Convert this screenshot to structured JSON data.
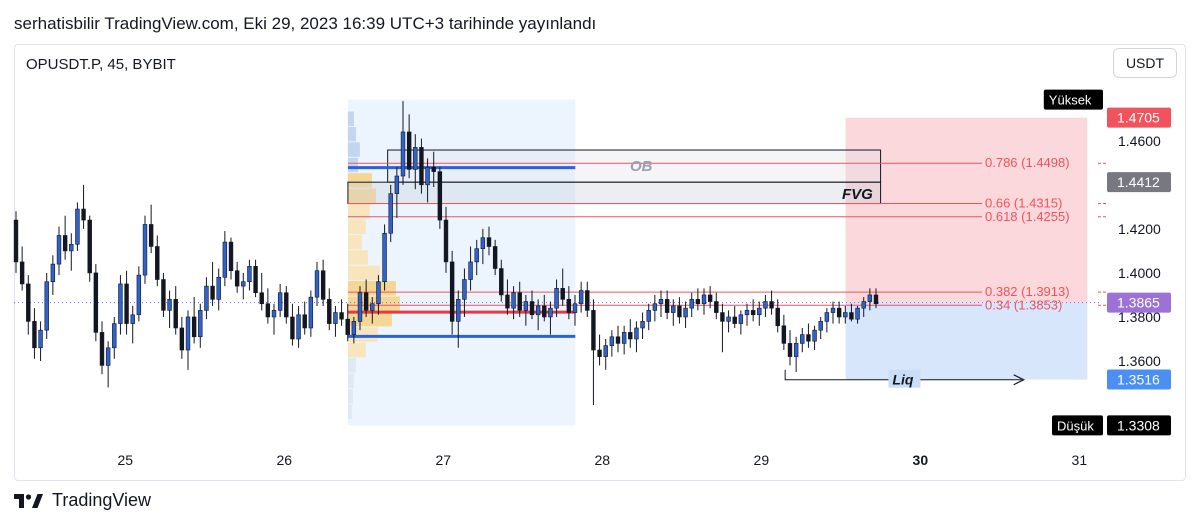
{
  "header": {
    "publish_text": "serhatisbilir TradingView.com, Eki 29, 2023 16:39 UTC+3 tarihinde yayınlandı"
  },
  "symbol": {
    "label": "OPUSDT.P, 45, BYBIT"
  },
  "currency_button": {
    "label": "USDT"
  },
  "footer": {
    "brand": "TradingView",
    "logo_icon": "tradingview-logo-icon"
  },
  "chart_data": {
    "type": "candlestick",
    "symbol": "OPUSDT.P",
    "timeframe": "45",
    "exchange": "BYBIT",
    "x_ticks": [
      "25",
      "26",
      "27",
      "28",
      "29",
      "30",
      "31"
    ],
    "x_tick_bold": "30",
    "y_ticks": [
      "1.4600",
      "1.4200",
      "1.4000",
      "1.3800",
      "1.3600"
    ],
    "ylim": [
      1.3255,
      1.4885
    ],
    "xlim_days": [
      24.3,
      31.13
    ],
    "price_labels": [
      {
        "text": "Yüksek",
        "value": 1.4787,
        "color": "#000000",
        "kind": "tag"
      },
      {
        "text": "1.4705",
        "value": 1.4705,
        "color": "#f0535d",
        "kind": "price"
      },
      {
        "text": "1.4412",
        "value": 1.4412,
        "color": "#777880",
        "kind": "price"
      },
      {
        "text": "1.3865",
        "value": 1.3865,
        "color": "#9c72d6",
        "kind": "price"
      },
      {
        "text": "1.3516",
        "value": 1.3516,
        "color": "#4c8ff3",
        "kind": "price"
      },
      {
        "text": "Düşük",
        "value": 1.3308,
        "color": "#000000",
        "kind": "tag"
      },
      {
        "text": "1.3308",
        "value": 1.3308,
        "color": "#000000",
        "kind": "price"
      }
    ],
    "fib_levels": [
      {
        "label": "0.786 (1.4498)",
        "value": 1.4498
      },
      {
        "label": "0.66 (1.4315)",
        "value": 1.4315
      },
      {
        "label": "0.618 (1.4255)",
        "value": 1.4255
      },
      {
        "label": "0.382 (1.3913)",
        "value": 1.3913
      },
      {
        "label": "0.34 (1.3853)",
        "value": 1.3853
      }
    ],
    "fib_x_start": 26.4,
    "fib_x_end": 31.0,
    "annotations": {
      "ob_label": "OB",
      "fvg_label": "FVG",
      "liq_label": "Liq"
    },
    "ob_box": {
      "x0": 26.65,
      "x1": 29.75,
      "y0": 1.4558,
      "y1": 1.4412
    },
    "fvg_box": {
      "x0": 26.4,
      "x1": 29.75,
      "y0": 1.4412,
      "y1": 1.4315
    },
    "ob_line": {
      "x0": 26.4,
      "x1": 27.83,
      "value": 1.4478
    },
    "vp_red_line": {
      "x0": 26.4,
      "x1": 27.83,
      "value": 1.3822
    },
    "vp_blue_line": {
      "x0": 26.4,
      "x1": 27.83,
      "value": 1.3712
    },
    "volume_profile_range": {
      "x0": 26.4,
      "x1": 27.83,
      "y0": 1.3308,
      "y1": 1.4787
    },
    "risk_zone": {
      "x0": 29.53,
      "x1": 31.05,
      "y0": 1.4705,
      "y1": 1.3865
    },
    "reward_zone": {
      "x0": 29.53,
      "x1": 31.05,
      "y0": 1.3865,
      "y1": 1.3516
    },
    "liq_arrow": {
      "x0": 29.15,
      "x1": 30.65,
      "value": 1.3515
    },
    "current_price": 1.3865,
    "candles": [
      {
        "o": 1.424,
        "h": 1.428,
        "l": 1.4,
        "c": 1.405
      },
      {
        "o": 1.405,
        "h": 1.412,
        "l": 1.392,
        "c": 1.395
      },
      {
        "o": 1.395,
        "h": 1.399,
        "l": 1.372,
        "c": 1.378
      },
      {
        "o": 1.378,
        "h": 1.384,
        "l": 1.361,
        "c": 1.366
      },
      {
        "o": 1.366,
        "h": 1.378,
        "l": 1.36,
        "c": 1.374
      },
      {
        "o": 1.374,
        "h": 1.4,
        "l": 1.37,
        "c": 1.396
      },
      {
        "o": 1.396,
        "h": 1.408,
        "l": 1.39,
        "c": 1.404
      },
      {
        "o": 1.404,
        "h": 1.421,
        "l": 1.399,
        "c": 1.417
      },
      {
        "o": 1.417,
        "h": 1.426,
        "l": 1.406,
        "c": 1.41
      },
      {
        "o": 1.41,
        "h": 1.418,
        "l": 1.401,
        "c": 1.413
      },
      {
        "o": 1.413,
        "h": 1.432,
        "l": 1.41,
        "c": 1.429
      },
      {
        "o": 1.429,
        "h": 1.44,
        "l": 1.42,
        "c": 1.424
      },
      {
        "o": 1.424,
        "h": 1.426,
        "l": 1.396,
        "c": 1.4
      },
      {
        "o": 1.4,
        "h": 1.404,
        "l": 1.369,
        "c": 1.373
      },
      {
        "o": 1.373,
        "h": 1.378,
        "l": 1.354,
        "c": 1.358
      },
      {
        "o": 1.358,
        "h": 1.369,
        "l": 1.348,
        "c": 1.366
      },
      {
        "o": 1.366,
        "h": 1.38,
        "l": 1.361,
        "c": 1.377
      },
      {
        "o": 1.377,
        "h": 1.399,
        "l": 1.372,
        "c": 1.395
      },
      {
        "o": 1.395,
        "h": 1.401,
        "l": 1.372,
        "c": 1.377
      },
      {
        "o": 1.377,
        "h": 1.385,
        "l": 1.368,
        "c": 1.381
      },
      {
        "o": 1.381,
        "h": 1.403,
        "l": 1.378,
        "c": 1.399
      },
      {
        "o": 1.399,
        "h": 1.426,
        "l": 1.395,
        "c": 1.422
      },
      {
        "o": 1.422,
        "h": 1.431,
        "l": 1.409,
        "c": 1.412
      },
      {
        "o": 1.412,
        "h": 1.417,
        "l": 1.394,
        "c": 1.397
      },
      {
        "o": 1.397,
        "h": 1.4,
        "l": 1.38,
        "c": 1.383
      },
      {
        "o": 1.383,
        "h": 1.392,
        "l": 1.375,
        "c": 1.388
      },
      {
        "o": 1.388,
        "h": 1.394,
        "l": 1.372,
        "c": 1.375
      },
      {
        "o": 1.375,
        "h": 1.38,
        "l": 1.361,
        "c": 1.365
      },
      {
        "o": 1.365,
        "h": 1.383,
        "l": 1.356,
        "c": 1.38
      },
      {
        "o": 1.38,
        "h": 1.389,
        "l": 1.368,
        "c": 1.371
      },
      {
        "o": 1.371,
        "h": 1.386,
        "l": 1.366,
        "c": 1.383
      },
      {
        "o": 1.383,
        "h": 1.398,
        "l": 1.379,
        "c": 1.394
      },
      {
        "o": 1.394,
        "h": 1.405,
        "l": 1.385,
        "c": 1.388
      },
      {
        "o": 1.388,
        "h": 1.402,
        "l": 1.383,
        "c": 1.398
      },
      {
        "o": 1.398,
        "h": 1.419,
        "l": 1.394,
        "c": 1.414
      },
      {
        "o": 1.414,
        "h": 1.416,
        "l": 1.397,
        "c": 1.401
      },
      {
        "o": 1.401,
        "h": 1.405,
        "l": 1.391,
        "c": 1.394
      },
      {
        "o": 1.394,
        "h": 1.4,
        "l": 1.388,
        "c": 1.396
      },
      {
        "o": 1.396,
        "h": 1.406,
        "l": 1.392,
        "c": 1.403
      },
      {
        "o": 1.403,
        "h": 1.406,
        "l": 1.389,
        "c": 1.391
      },
      {
        "o": 1.391,
        "h": 1.4,
        "l": 1.383,
        "c": 1.386
      },
      {
        "o": 1.386,
        "h": 1.393,
        "l": 1.377,
        "c": 1.38
      },
      {
        "o": 1.38,
        "h": 1.386,
        "l": 1.372,
        "c": 1.383
      },
      {
        "o": 1.383,
        "h": 1.395,
        "l": 1.38,
        "c": 1.391
      },
      {
        "o": 1.391,
        "h": 1.394,
        "l": 1.377,
        "c": 1.38
      },
      {
        "o": 1.38,
        "h": 1.386,
        "l": 1.367,
        "c": 1.37
      },
      {
        "o": 1.37,
        "h": 1.385,
        "l": 1.366,
        "c": 1.381
      },
      {
        "o": 1.381,
        "h": 1.387,
        "l": 1.372,
        "c": 1.375
      },
      {
        "o": 1.375,
        "h": 1.392,
        "l": 1.371,
        "c": 1.389
      },
      {
        "o": 1.389,
        "h": 1.405,
        "l": 1.385,
        "c": 1.401
      },
      {
        "o": 1.401,
        "h": 1.406,
        "l": 1.385,
        "c": 1.388
      },
      {
        "o": 1.388,
        "h": 1.393,
        "l": 1.374,
        "c": 1.377
      },
      {
        "o": 1.377,
        "h": 1.385,
        "l": 1.371,
        "c": 1.382
      },
      {
        "o": 1.382,
        "h": 1.388,
        "l": 1.376,
        "c": 1.379
      },
      {
        "o": 1.379,
        "h": 1.386,
        "l": 1.369,
        "c": 1.372
      },
      {
        "o": 1.372,
        "h": 1.38,
        "l": 1.368,
        "c": 1.378
      },
      {
        "o": 1.378,
        "h": 1.394,
        "l": 1.374,
        "c": 1.391
      },
      {
        "o": 1.391,
        "h": 1.397,
        "l": 1.38,
        "c": 1.383
      },
      {
        "o": 1.383,
        "h": 1.389,
        "l": 1.377,
        "c": 1.386
      },
      {
        "o": 1.386,
        "h": 1.399,
        "l": 1.381,
        "c": 1.396
      },
      {
        "o": 1.396,
        "h": 1.422,
        "l": 1.392,
        "c": 1.418
      },
      {
        "o": 1.418,
        "h": 1.44,
        "l": 1.414,
        "c": 1.436
      },
      {
        "o": 1.436,
        "h": 1.448,
        "l": 1.425,
        "c": 1.444
      },
      {
        "o": 1.444,
        "h": 1.478,
        "l": 1.44,
        "c": 1.464
      },
      {
        "o": 1.464,
        "h": 1.472,
        "l": 1.443,
        "c": 1.447
      },
      {
        "o": 1.447,
        "h": 1.463,
        "l": 1.438,
        "c": 1.457
      },
      {
        "o": 1.457,
        "h": 1.461,
        "l": 1.436,
        "c": 1.44
      },
      {
        "o": 1.44,
        "h": 1.452,
        "l": 1.432,
        "c": 1.448
      },
      {
        "o": 1.448,
        "h": 1.455,
        "l": 1.439,
        "c": 1.446
      },
      {
        "o": 1.446,
        "h": 1.448,
        "l": 1.42,
        "c": 1.424
      },
      {
        "o": 1.424,
        "h": 1.43,
        "l": 1.4,
        "c": 1.405
      },
      {
        "o": 1.405,
        "h": 1.41,
        "l": 1.372,
        "c": 1.378
      },
      {
        "o": 1.378,
        "h": 1.392,
        "l": 1.366,
        "c": 1.388
      },
      {
        "o": 1.388,
        "h": 1.402,
        "l": 1.38,
        "c": 1.397
      },
      {
        "o": 1.397,
        "h": 1.412,
        "l": 1.392,
        "c": 1.405
      },
      {
        "o": 1.405,
        "h": 1.415,
        "l": 1.399,
        "c": 1.411
      },
      {
        "o": 1.411,
        "h": 1.42,
        "l": 1.404,
        "c": 1.416
      },
      {
        "o": 1.416,
        "h": 1.421,
        "l": 1.408,
        "c": 1.412
      },
      {
        "o": 1.412,
        "h": 1.415,
        "l": 1.399,
        "c": 1.402
      },
      {
        "o": 1.402,
        "h": 1.406,
        "l": 1.387,
        "c": 1.39
      },
      {
        "o": 1.39,
        "h": 1.397,
        "l": 1.381,
        "c": 1.384
      },
      {
        "o": 1.384,
        "h": 1.394,
        "l": 1.379,
        "c": 1.391
      },
      {
        "o": 1.391,
        "h": 1.396,
        "l": 1.38,
        "c": 1.383
      },
      {
        "o": 1.383,
        "h": 1.39,
        "l": 1.376,
        "c": 1.387
      },
      {
        "o": 1.387,
        "h": 1.392,
        "l": 1.379,
        "c": 1.381
      },
      {
        "o": 1.381,
        "h": 1.388,
        "l": 1.374,
        "c": 1.385
      },
      {
        "o": 1.385,
        "h": 1.39,
        "l": 1.378,
        "c": 1.38
      },
      {
        "o": 1.38,
        "h": 1.387,
        "l": 1.372,
        "c": 1.384
      },
      {
        "o": 1.384,
        "h": 1.397,
        "l": 1.38,
        "c": 1.393
      },
      {
        "o": 1.393,
        "h": 1.402,
        "l": 1.385,
        "c": 1.388
      },
      {
        "o": 1.388,
        "h": 1.394,
        "l": 1.379,
        "c": 1.382
      },
      {
        "o": 1.382,
        "h": 1.39,
        "l": 1.376,
        "c": 1.386
      },
      {
        "o": 1.386,
        "h": 1.396,
        "l": 1.382,
        "c": 1.392
      },
      {
        "o": 1.392,
        "h": 1.396,
        "l": 1.38,
        "c": 1.383
      },
      {
        "o": 1.383,
        "h": 1.388,
        "l": 1.34,
        "c": 1.365
      },
      {
        "o": 1.365,
        "h": 1.372,
        "l": 1.358,
        "c": 1.362
      },
      {
        "o": 1.362,
        "h": 1.37,
        "l": 1.356,
        "c": 1.367
      },
      {
        "o": 1.367,
        "h": 1.374,
        "l": 1.362,
        "c": 1.371
      },
      {
        "o": 1.371,
        "h": 1.376,
        "l": 1.364,
        "c": 1.368
      },
      {
        "o": 1.368,
        "h": 1.376,
        "l": 1.363,
        "c": 1.373
      },
      {
        "o": 1.373,
        "h": 1.379,
        "l": 1.366,
        "c": 1.37
      },
      {
        "o": 1.37,
        "h": 1.378,
        "l": 1.364,
        "c": 1.375
      },
      {
        "o": 1.375,
        "h": 1.382,
        "l": 1.37,
        "c": 1.378
      },
      {
        "o": 1.378,
        "h": 1.386,
        "l": 1.374,
        "c": 1.383
      },
      {
        "o": 1.383,
        "h": 1.39,
        "l": 1.378,
        "c": 1.386
      },
      {
        "o": 1.386,
        "h": 1.392,
        "l": 1.38,
        "c": 1.388
      },
      {
        "o": 1.388,
        "h": 1.392,
        "l": 1.379,
        "c": 1.382
      },
      {
        "o": 1.382,
        "h": 1.388,
        "l": 1.376,
        "c": 1.385
      },
      {
        "o": 1.385,
        "h": 1.389,
        "l": 1.377,
        "c": 1.38
      },
      {
        "o": 1.38,
        "h": 1.387,
        "l": 1.375,
        "c": 1.384
      },
      {
        "o": 1.384,
        "h": 1.391,
        "l": 1.38,
        "c": 1.388
      },
      {
        "o": 1.388,
        "h": 1.393,
        "l": 1.383,
        "c": 1.386
      },
      {
        "o": 1.386,
        "h": 1.393,
        "l": 1.381,
        "c": 1.39
      },
      {
        "o": 1.39,
        "h": 1.394,
        "l": 1.384,
        "c": 1.387
      },
      {
        "o": 1.387,
        "h": 1.391,
        "l": 1.379,
        "c": 1.382
      },
      {
        "o": 1.382,
        "h": 1.386,
        "l": 1.364,
        "c": 1.378
      },
      {
        "o": 1.378,
        "h": 1.383,
        "l": 1.373,
        "c": 1.38
      },
      {
        "o": 1.38,
        "h": 1.385,
        "l": 1.375,
        "c": 1.377
      },
      {
        "o": 1.377,
        "h": 1.383,
        "l": 1.372,
        "c": 1.381
      },
      {
        "o": 1.381,
        "h": 1.386,
        "l": 1.376,
        "c": 1.383
      },
      {
        "o": 1.383,
        "h": 1.388,
        "l": 1.378,
        "c": 1.381
      },
      {
        "o": 1.381,
        "h": 1.387,
        "l": 1.376,
        "c": 1.384
      },
      {
        "o": 1.384,
        "h": 1.39,
        "l": 1.38,
        "c": 1.387
      },
      {
        "o": 1.387,
        "h": 1.392,
        "l": 1.381,
        "c": 1.384
      },
      {
        "o": 1.384,
        "h": 1.388,
        "l": 1.373,
        "c": 1.376
      },
      {
        "o": 1.376,
        "h": 1.381,
        "l": 1.365,
        "c": 1.368
      },
      {
        "o": 1.368,
        "h": 1.374,
        "l": 1.358,
        "c": 1.362
      },
      {
        "o": 1.362,
        "h": 1.371,
        "l": 1.355,
        "c": 1.368
      },
      {
        "o": 1.368,
        "h": 1.375,
        "l": 1.364,
        "c": 1.372
      },
      {
        "o": 1.372,
        "h": 1.377,
        "l": 1.366,
        "c": 1.369
      },
      {
        "o": 1.369,
        "h": 1.376,
        "l": 1.365,
        "c": 1.374
      },
      {
        "o": 1.374,
        "h": 1.38,
        "l": 1.37,
        "c": 1.378
      },
      {
        "o": 1.378,
        "h": 1.384,
        "l": 1.373,
        "c": 1.382
      },
      {
        "o": 1.382,
        "h": 1.387,
        "l": 1.377,
        "c": 1.384
      },
      {
        "o": 1.384,
        "h": 1.387,
        "l": 1.377,
        "c": 1.38
      },
      {
        "o": 1.38,
        "h": 1.385,
        "l": 1.377,
        "c": 1.382
      },
      {
        "o": 1.382,
        "h": 1.386,
        "l": 1.378,
        "c": 1.379
      },
      {
        "o": 1.379,
        "h": 1.385,
        "l": 1.377,
        "c": 1.384
      },
      {
        "o": 1.384,
        "h": 1.389,
        "l": 1.38,
        "c": 1.387
      },
      {
        "o": 1.387,
        "h": 1.393,
        "l": 1.383,
        "c": 1.39
      },
      {
        "o": 1.39,
        "h": 1.393,
        "l": 1.384,
        "c": 1.386
      }
    ]
  }
}
